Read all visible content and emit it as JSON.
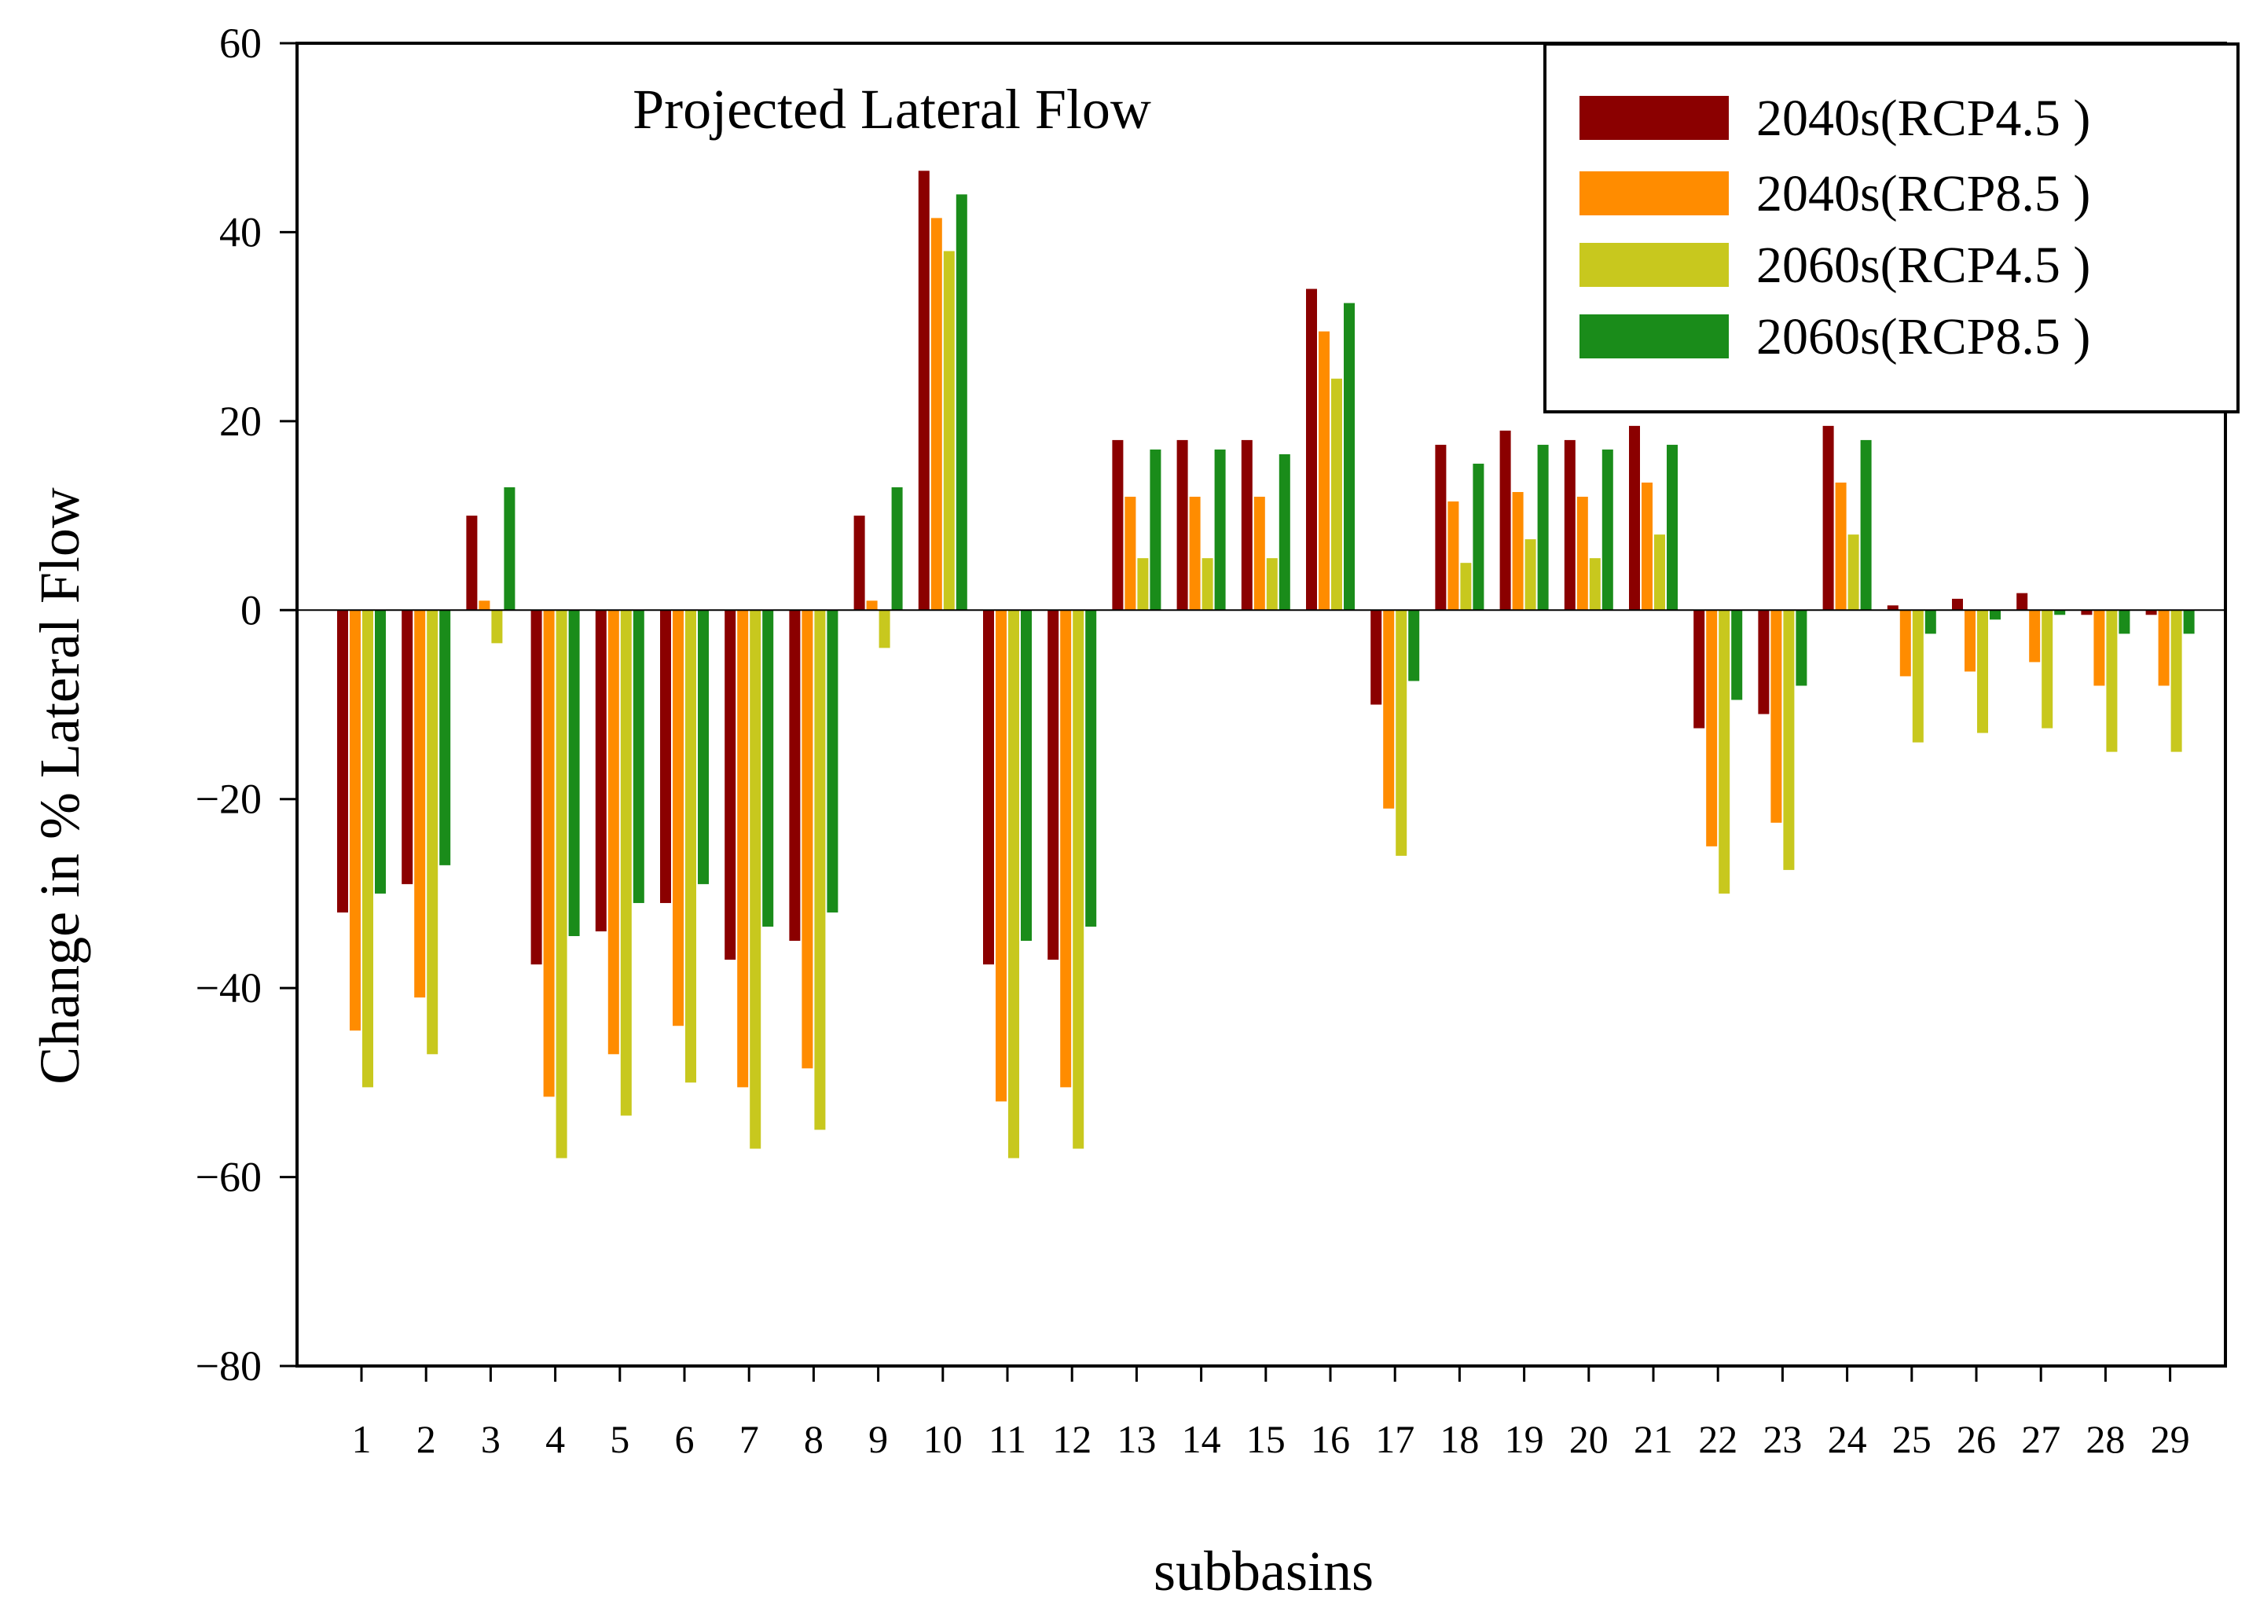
{
  "chart_data": {
    "type": "bar",
    "title": "Projected Lateral Flow",
    "xlabel": "subbasins",
    "ylabel": "Change in % Lateral Flow",
    "ylim": [
      -80,
      60
    ],
    "yticks": [
      60,
      40,
      20,
      0,
      -20,
      -40,
      -60,
      -80
    ],
    "ytick_labels": [
      "60",
      "40",
      "20",
      "0",
      "−20",
      "−40",
      "−60",
      "−80"
    ],
    "grid": false,
    "legend_position": "top-right",
    "categories": [
      "1",
      "2",
      "3",
      "4",
      "5",
      "6",
      "7",
      "8",
      "9",
      "10",
      "11",
      "12",
      "13",
      "14",
      "15",
      "16",
      "17",
      "18",
      "19",
      "20",
      "21",
      "22",
      "23",
      "24",
      "25",
      "26",
      "27",
      "28",
      "29"
    ],
    "series": [
      {
        "name": "2040s(RCP4.5 )",
        "color": "#8b0000",
        "values": [
          -32,
          -29,
          10,
          -37.5,
          -34,
          -31,
          -37,
          -35,
          10,
          46.5,
          -37.5,
          -37,
          18,
          18,
          18,
          34,
          -10,
          17.5,
          19,
          18,
          19.5,
          -12.5,
          -11,
          19.5,
          0.5,
          1.2,
          1.8,
          -0.5,
          -0.5
        ]
      },
      {
        "name": "2040s(RCP8.5 )",
        "color": "#ff8c00",
        "values": [
          -44.5,
          -41,
          1,
          -51.5,
          -47,
          -44,
          -50.5,
          -48.5,
          1,
          41.5,
          -52,
          -50.5,
          12,
          12,
          12,
          29.5,
          -21,
          11.5,
          12.5,
          12,
          13.5,
          -25,
          -22.5,
          13.5,
          -7,
          -6.5,
          -5.5,
          -8,
          -8
        ]
      },
      {
        "name": "2060s(RCP4.5 )",
        "color": "#c8c81e",
        "values": [
          -50.5,
          -47,
          -3.5,
          -58,
          -53.5,
          -50,
          -57,
          -55,
          -4,
          38,
          -58,
          -57,
          5.5,
          5.5,
          5.5,
          24.5,
          -26,
          5,
          7.5,
          5.5,
          8,
          -30,
          -27.5,
          8,
          -14,
          -13,
          -12.5,
          -15,
          -15
        ]
      },
      {
        "name": "2060s(RCP8.5 )",
        "color": "#1a8c1a",
        "values": [
          -30,
          -27,
          13,
          -34.5,
          -31,
          -29,
          -33.5,
          -32,
          13,
          44,
          -35,
          -33.5,
          17,
          17,
          16.5,
          32.5,
          -7.5,
          15.5,
          17.5,
          17,
          17.5,
          -9.5,
          -8,
          18,
          -2.5,
          -1,
          -0.5,
          -2.5,
          -2.5
        ]
      }
    ]
  }
}
